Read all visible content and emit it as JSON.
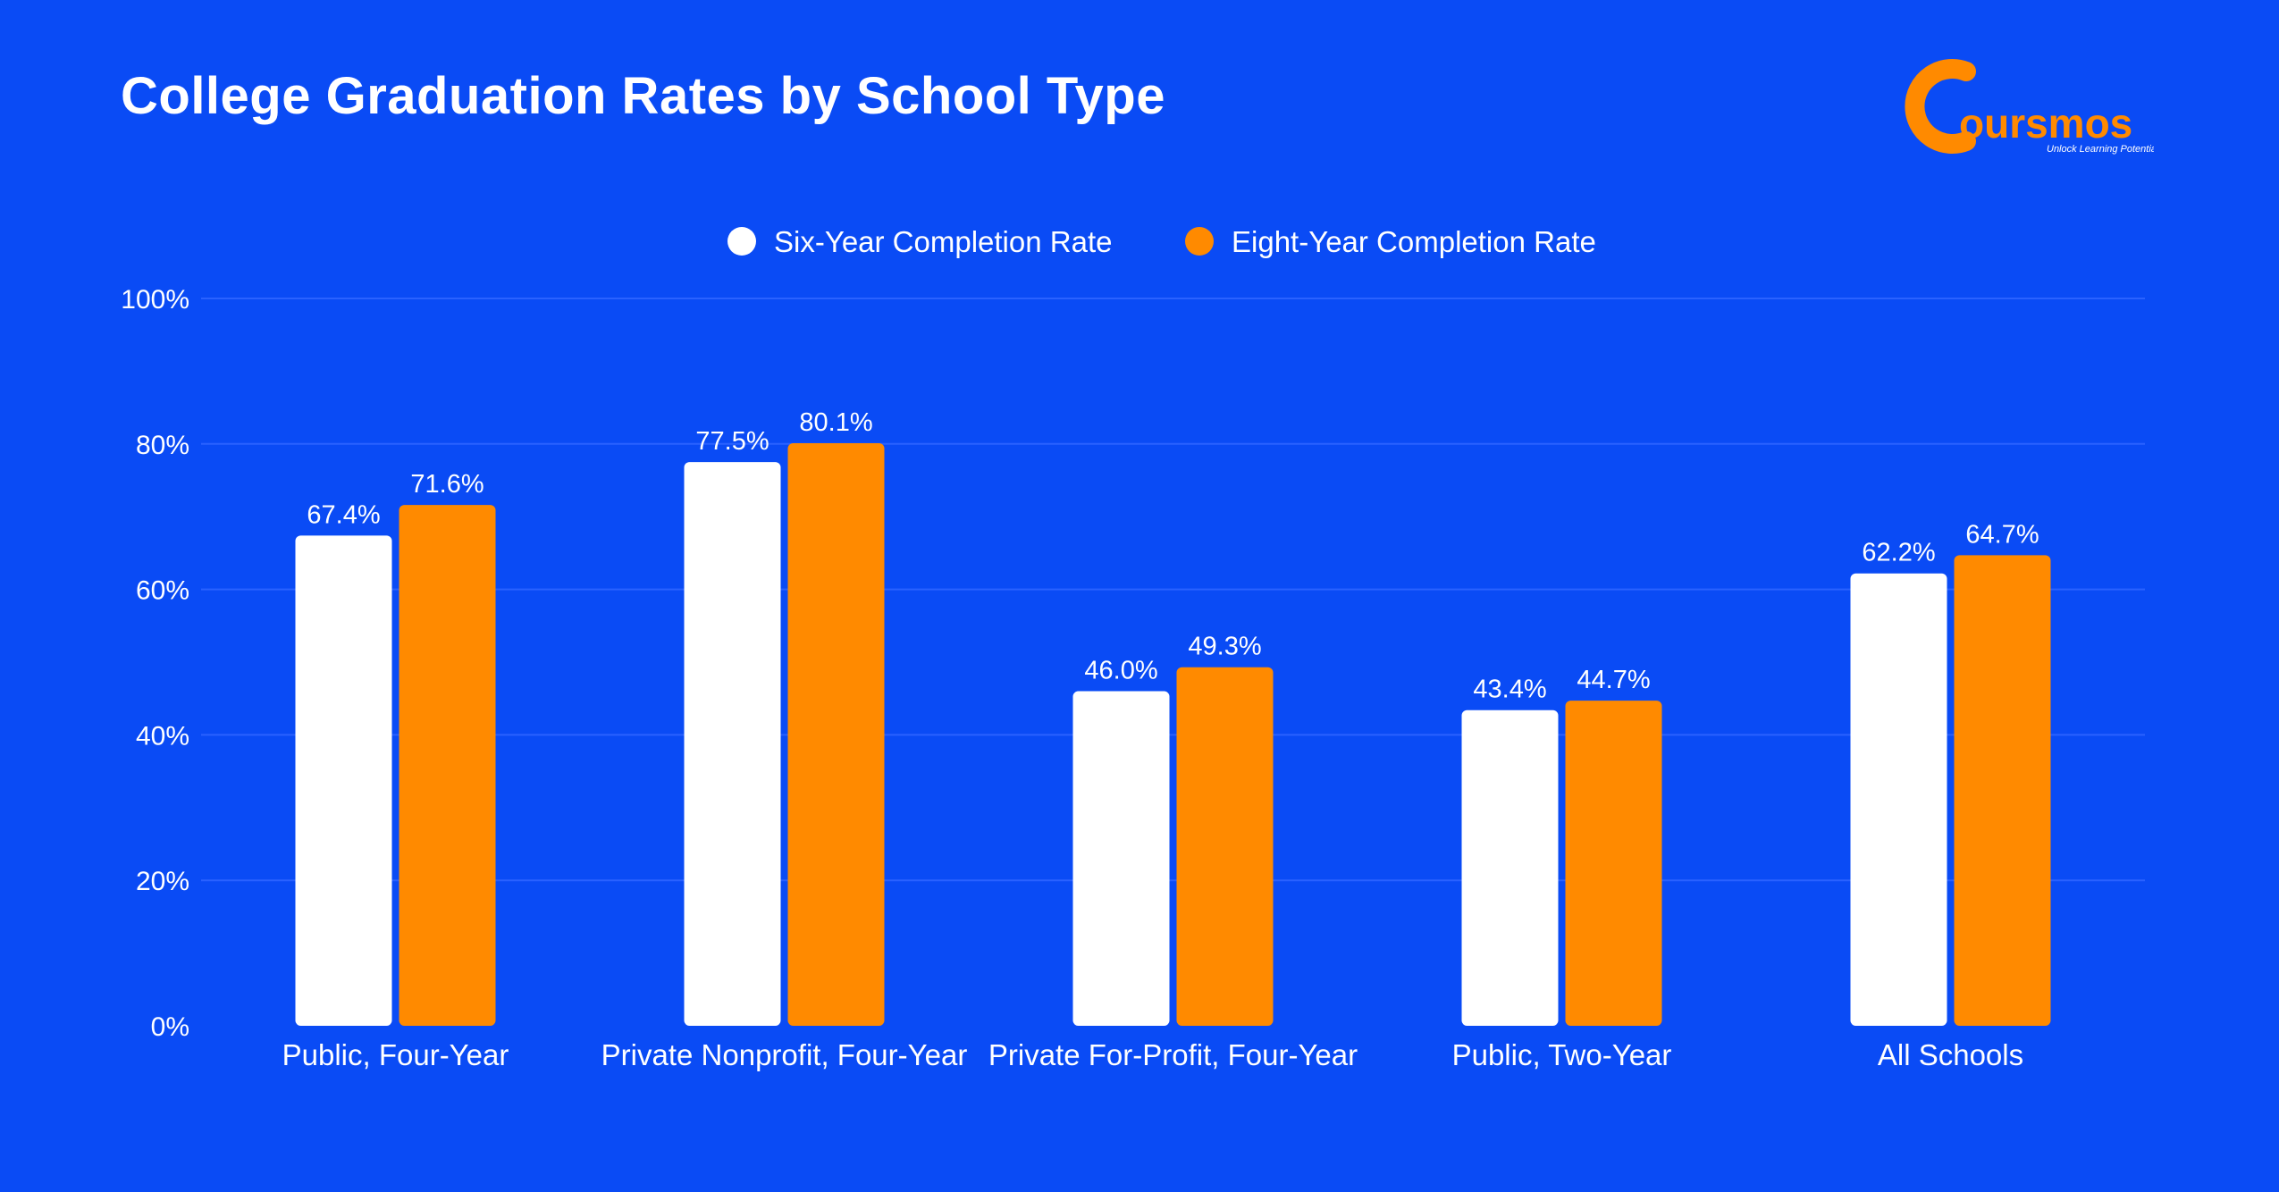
{
  "title": "College Graduation Rates by School Type",
  "logo": {
    "wordmark": "Coursmos",
    "tagline": "Unlock Learning Potential"
  },
  "colors": {
    "background": "#0a4bf5",
    "six_year": "#ffffff",
    "eight_year": "#ff8a00",
    "grid": "#2a62ff"
  },
  "chart_data": {
    "type": "bar",
    "title": "College Graduation Rates by School Type",
    "categories": [
      "Public, Four-Year",
      "Private Nonprofit, Four-Year",
      "Private For-Profit, Four-Year",
      "Public, Two-Year",
      "All Schools"
    ],
    "series": [
      {
        "name": "Six-Year Completion Rate",
        "values": [
          67.4,
          77.5,
          46.0,
          43.4,
          62.2
        ],
        "labels": [
          "67.4%",
          "77.5%",
          "46.0%",
          "43.4%",
          "62.2%"
        ],
        "color": "#ffffff"
      },
      {
        "name": "Eight-Year Completion Rate",
        "values": [
          71.6,
          80.1,
          49.3,
          44.7,
          64.7
        ],
        "labels": [
          "71.6%",
          "80.1%",
          "49.3%",
          "44.7%",
          "64.7%"
        ],
        "color": "#ff8a00"
      }
    ],
    "yticks": [
      "0%",
      "20%",
      "40%",
      "60%",
      "80%",
      "100%"
    ],
    "ytick_values": [
      0,
      20,
      40,
      60,
      80,
      100
    ],
    "ylim": [
      0,
      100
    ],
    "grid": true,
    "legend_position": "top-center"
  }
}
